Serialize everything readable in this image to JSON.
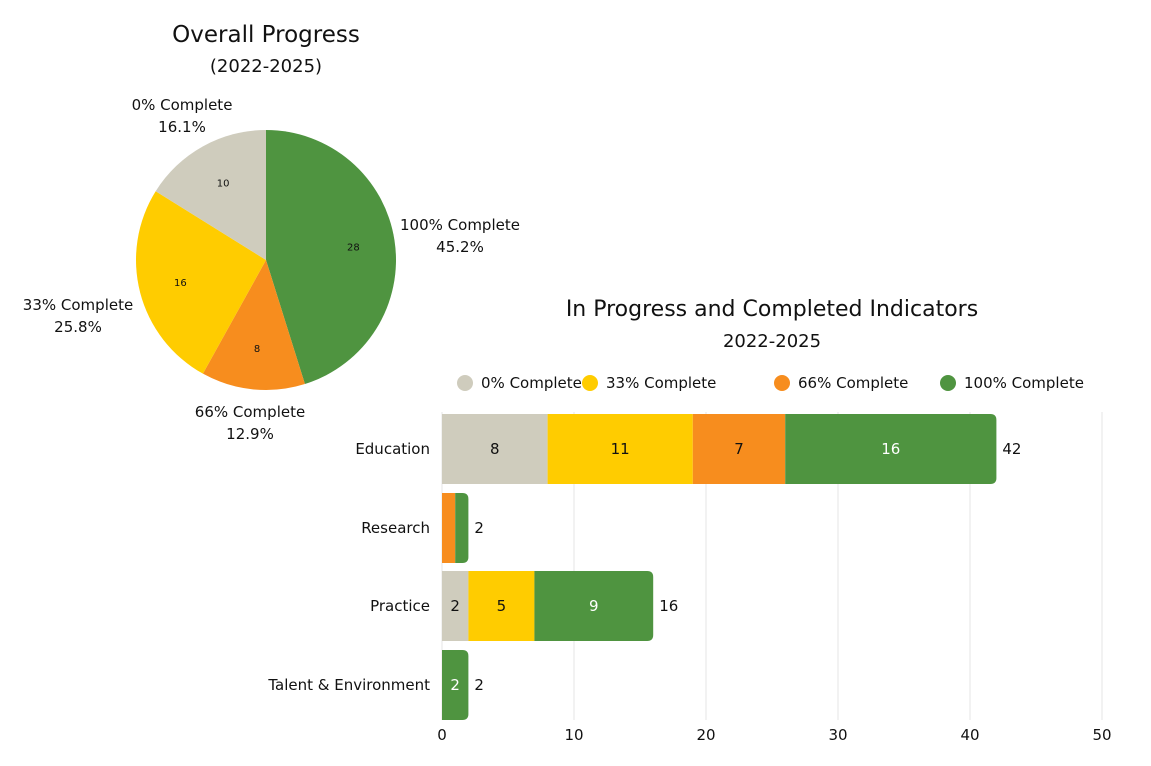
{
  "colors": {
    "0% Complete": "#CFCCBD",
    "33% Complete": "#FFCC00",
    "66% Complete": "#F78D1E",
    "100% Complete": "#4F9440"
  },
  "chart_data": [
    {
      "type": "pie",
      "title": "Overall Progress",
      "subtitle": "(2022-2025)",
      "slices": [
        {
          "label": "100% Complete",
          "value": 28,
          "percent": "45.2%"
        },
        {
          "label": "66% Complete",
          "value": 8,
          "percent": "12.9%"
        },
        {
          "label": "33% Complete",
          "value": 16,
          "percent": "25.8%"
        },
        {
          "label": "0% Complete",
          "value": 10,
          "percent": "16.1%"
        }
      ]
    },
    {
      "type": "bar",
      "orientation": "horizontal",
      "stacked": true,
      "title": "In Progress and Completed Indicators",
      "subtitle": "2022-2025",
      "legend_position": "top",
      "categories": [
        "Education",
        "Research",
        "Practice",
        "Talent & Environment"
      ],
      "series": [
        {
          "name": "0% Complete",
          "values": [
            8,
            0,
            2,
            0
          ]
        },
        {
          "name": "33% Complete",
          "values": [
            11,
            0,
            5,
            0
          ]
        },
        {
          "name": "66% Complete",
          "values": [
            7,
            1,
            0,
            0
          ]
        },
        {
          "name": "100% Complete",
          "values": [
            16,
            1,
            9,
            2
          ]
        }
      ],
      "totals": [
        42,
        2,
        16,
        2
      ],
      "xlim": [
        0,
        50
      ],
      "xticks": [
        0,
        10,
        20,
        30,
        40,
        50
      ],
      "grid": true
    }
  ]
}
